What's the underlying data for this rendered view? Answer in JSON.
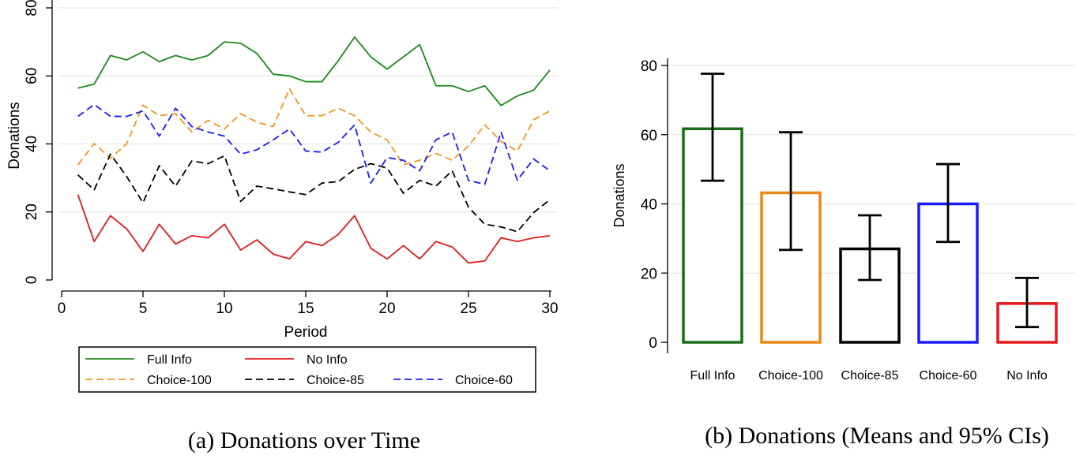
{
  "figures": [
    {
      "caption": "(a) Donations over Time"
    },
    {
      "caption": "(b) Donations (Means and 95% CIs)"
    }
  ],
  "chart_data": [
    {
      "type": "line",
      "xlabel": "Period",
      "ylabel": "Donations",
      "xlim": [
        0,
        30
      ],
      "ylim": [
        0,
        80
      ],
      "xticks": [
        0,
        5,
        10,
        15,
        20,
        25,
        30
      ],
      "yticks": [
        0,
        20,
        40,
        60,
        80
      ],
      "grid": true,
      "legend_position": "bottom",
      "x": [
        1,
        2,
        3,
        4,
        5,
        6,
        7,
        8,
        9,
        10,
        11,
        12,
        13,
        14,
        15,
        16,
        17,
        18,
        19,
        20,
        21,
        22,
        23,
        24,
        25,
        26,
        27,
        28,
        29,
        30
      ],
      "series": [
        {
          "name": "Full Info",
          "color": "#1a8a1a",
          "dash": "solid",
          "values": [
            56.4,
            57.6,
            66,
            64.7,
            67.1,
            64.2,
            66,
            64.7,
            66,
            70,
            69.6,
            66.6,
            60.5,
            60,
            58.3,
            58.3,
            64.5,
            71.4,
            65.6,
            62,
            65.6,
            69.2,
            57.1,
            57.1,
            55.4,
            57.1,
            51.3,
            54.1,
            55.8,
            61.7
          ]
        },
        {
          "name": "No Info",
          "color": "#e3191c",
          "dash": "solid",
          "values": [
            25.1,
            11.3,
            18.9,
            15,
            8.4,
            16.4,
            10.6,
            13,
            12.4,
            16.4,
            8.8,
            11.8,
            7.6,
            6.2,
            11.3,
            10.1,
            13.4,
            18.9,
            9.3,
            6.2,
            10.1,
            6.2,
            11.3,
            9.7,
            5,
            5.6,
            12.4,
            11.3,
            12.4,
            13
          ]
        },
        {
          "name": "Choice-100",
          "color": "#f0961e",
          "dash": "dashed",
          "values": [
            33.9,
            40.1,
            35.8,
            40.1,
            51.4,
            48.3,
            48.9,
            43.5,
            46.9,
            44.4,
            48.9,
            46.4,
            45.1,
            56.2,
            48.3,
            48.3,
            50.5,
            48.3,
            43.5,
            41.2,
            33.9,
            35.2,
            37.2,
            35.2,
            39.4,
            45.6,
            40.8,
            37.9,
            47.1,
            49.7
          ]
        },
        {
          "name": "Choice-85",
          "color": "#000000",
          "dash": "dashed",
          "values": [
            30.9,
            26.5,
            37,
            30.4,
            22.7,
            33.6,
            27.6,
            35,
            34.2,
            36.5,
            23.1,
            27.6,
            26.8,
            25.9,
            25.1,
            28.5,
            28.9,
            32.5,
            34.2,
            32.9,
            25.5,
            29.3,
            27.6,
            32.1,
            21.4,
            16.4,
            15.6,
            14.2,
            19.8,
            23.6
          ]
        },
        {
          "name": "Choice-60",
          "color": "#1a1aff",
          "dash": "dashed",
          "values": [
            48.1,
            51.6,
            48.1,
            48.1,
            49.7,
            42.3,
            50.5,
            45.1,
            43.5,
            42.3,
            37,
            38.3,
            41.2,
            44.4,
            37.9,
            37.6,
            40.5,
            45.6,
            28.5,
            36,
            35.2,
            32.1,
            41.2,
            43.5,
            29.3,
            28.1,
            43.5,
            29.3,
            35.6,
            32.1
          ]
        }
      ]
    },
    {
      "type": "bar",
      "xlabel": "",
      "ylabel": "Donations",
      "ylim": [
        0,
        80
      ],
      "yticks": [
        0,
        20,
        40,
        60,
        80
      ],
      "grid": true,
      "categories": [
        "Full Info",
        "Choice-100",
        "Choice-85",
        "Choice-60",
        "No Info"
      ],
      "values": [
        61.7,
        43.2,
        27,
        40,
        11.2
      ],
      "ci_low": [
        46.7,
        26.7,
        18,
        29,
        4.4
      ],
      "ci_high": [
        77.6,
        60.7,
        36.7,
        51.5,
        18.6
      ],
      "colors": [
        "#1a6b1a",
        "#e8881a",
        "#000000",
        "#1a1aff",
        "#e3191c"
      ]
    }
  ]
}
